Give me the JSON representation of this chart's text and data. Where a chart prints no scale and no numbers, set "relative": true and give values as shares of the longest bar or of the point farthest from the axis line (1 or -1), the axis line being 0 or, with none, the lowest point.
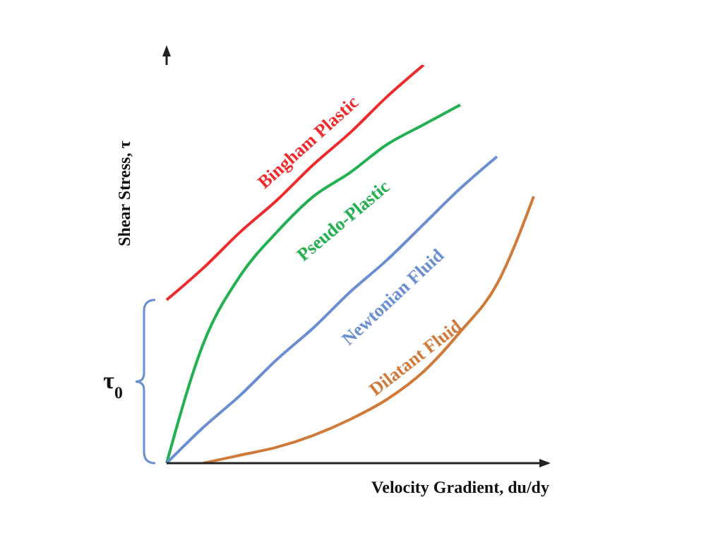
{
  "chart_data": {
    "type": "line",
    "relative": true,
    "xlabel": "Velocity Gradient, du/dy",
    "ylabel": "Shear Stress, τ",
    "annotations": [
      "τ$_{0}$"
    ],
    "categories": [
      null,
      null,
      null,
      null,
      null,
      null,
      null,
      null,
      null,
      null,
      null
    ],
    "legend": false,
    "grid": false,
    "marker": "none",
    "line_style": "solid",
    "series": [
      {
        "name": "Bingham Plastic",
        "color": "#f02a2a",
        "values": [
          0.41,
          0.49,
          0.58,
          0.66,
          0.75,
          0.83,
          0.92,
          1.0,
          null,
          null,
          null
        ]
      },
      {
        "name": "Pseudo-Plastic",
        "color": "#22b050",
        "values": [
          0,
          0.3,
          0.47,
          0.58,
          0.67,
          0.73,
          0.8,
          0.85,
          0.9,
          null,
          null
        ]
      },
      {
        "name": "Newtonian Fluid",
        "color": "#6a8fd0",
        "values": [
          0,
          0.09,
          0.17,
          0.26,
          0.34,
          0.43,
          0.51,
          0.6,
          0.69,
          0.77,
          null
        ]
      },
      {
        "name": "Dilatant Fluid",
        "color": "#d07a3a",
        "values": [
          null,
          0.0,
          0.02,
          0.04,
          0.07,
          0.11,
          0.16,
          0.23,
          0.33,
          0.45,
          0.67
        ]
      }
    ]
  }
}
